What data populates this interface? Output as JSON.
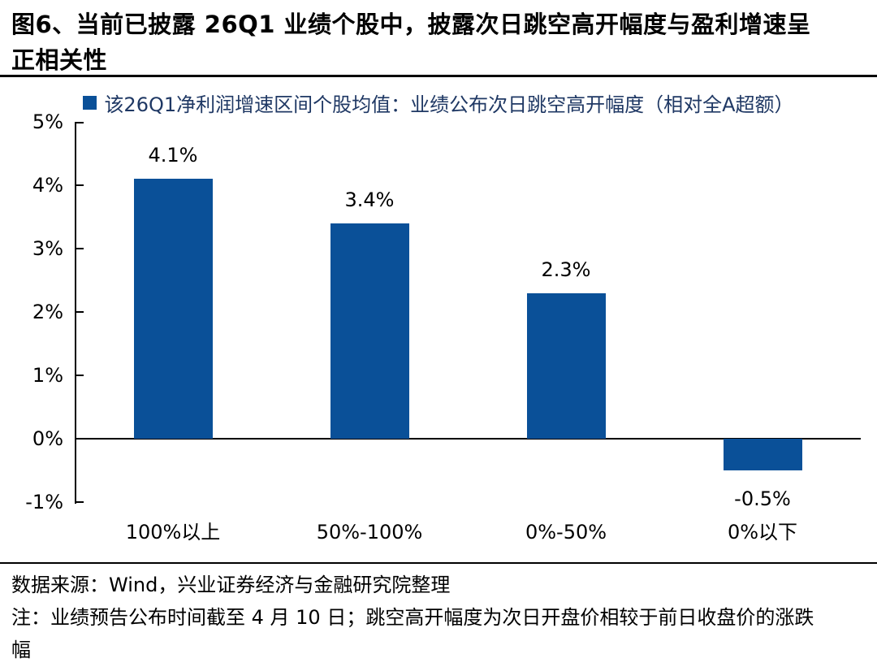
{
  "figure": {
    "title": "图6、当前已披露 26Q1 业绩个股中，披露次日跳空高开幅度与盈利增速呈正相关性",
    "source": "数据来源：Wind，兴业证券经济与金融研究院整理",
    "note": "注：业绩预告公布时间截至 4 月 10 日；跳空高开幅度为次日开盘价相较于前日收盘价的涨跌幅"
  },
  "colors": {
    "bar": "#0A5098",
    "legend_text": "#1F3864",
    "axis": "#000000"
  },
  "chart_data": {
    "type": "bar",
    "title": "该26Q1净利润增速区间个股均值：业绩公布次日跳空高开幅度（相对全A超额）",
    "categories": [
      "100%以上",
      "50%-100%",
      "0%-50%",
      "0%以下"
    ],
    "values": [
      4.1,
      3.4,
      2.3,
      -0.5
    ],
    "value_labels": [
      "4.1%",
      "3.4%",
      "2.3%",
      "-0.5%"
    ],
    "yticks": [
      "5%",
      "4%",
      "3%",
      "2%",
      "1%",
      "0%",
      "-1%"
    ],
    "ytick_values": [
      5,
      4,
      3,
      2,
      1,
      0,
      -1
    ],
    "ylim": [
      -1,
      5
    ],
    "xlabel": "",
    "ylabel": "",
    "legend_position": "top",
    "grid": false
  }
}
